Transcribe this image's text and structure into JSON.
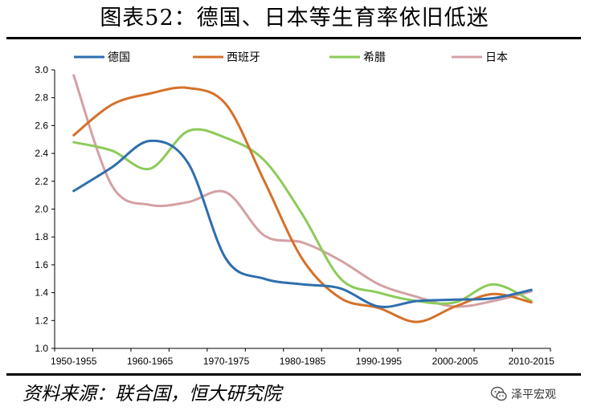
{
  "title": "图表52：德国、日本等生育率依旧低迷",
  "source": "资料来源：联合国，恒大研究院",
  "watermark": "泽平宏观",
  "chart_data": {
    "type": "line",
    "x_tick_labels": [
      "1950-1955",
      "1960-1965",
      "1970-1975",
      "1980-1985",
      "1990-1995",
      "2000-2005",
      "2010-2015"
    ],
    "x": [
      "1950-1955",
      "1955-1960",
      "1960-1965",
      "1965-1970",
      "1970-1975",
      "1975-1980",
      "1980-1985",
      "1985-1990",
      "1990-1995",
      "1995-2000",
      "2000-2005",
      "2005-2010",
      "2010-2015"
    ],
    "ylim": [
      1.0,
      3.0
    ],
    "y_ticks": [
      "1.0",
      "1.2",
      "1.4",
      "1.6",
      "1.8",
      "2.0",
      "2.2",
      "2.4",
      "2.6",
      "2.8",
      "3.0"
    ],
    "legend_position": "top",
    "series": [
      {
        "name": "德国",
        "color": "#2F6EAE",
        "values": [
          2.13,
          2.3,
          2.49,
          2.33,
          1.64,
          1.5,
          1.46,
          1.43,
          1.3,
          1.34,
          1.35,
          1.36,
          1.42
        ]
      },
      {
        "name": "西班牙",
        "color": "#D4712A",
        "values": [
          2.53,
          2.75,
          2.83,
          2.87,
          2.75,
          2.2,
          1.64,
          1.36,
          1.29,
          1.19,
          1.3,
          1.39,
          1.33
        ]
      },
      {
        "name": "希腊",
        "color": "#8CCB5A",
        "values": [
          2.48,
          2.42,
          2.29,
          2.56,
          2.51,
          2.35,
          1.96,
          1.5,
          1.4,
          1.34,
          1.33,
          1.46,
          1.34
        ]
      },
      {
        "name": "日本",
        "color": "#D4A0A4",
        "values": [
          2.96,
          2.17,
          2.03,
          2.05,
          2.12,
          1.81,
          1.76,
          1.63,
          1.46,
          1.37,
          1.3,
          1.34,
          1.41
        ]
      }
    ]
  }
}
